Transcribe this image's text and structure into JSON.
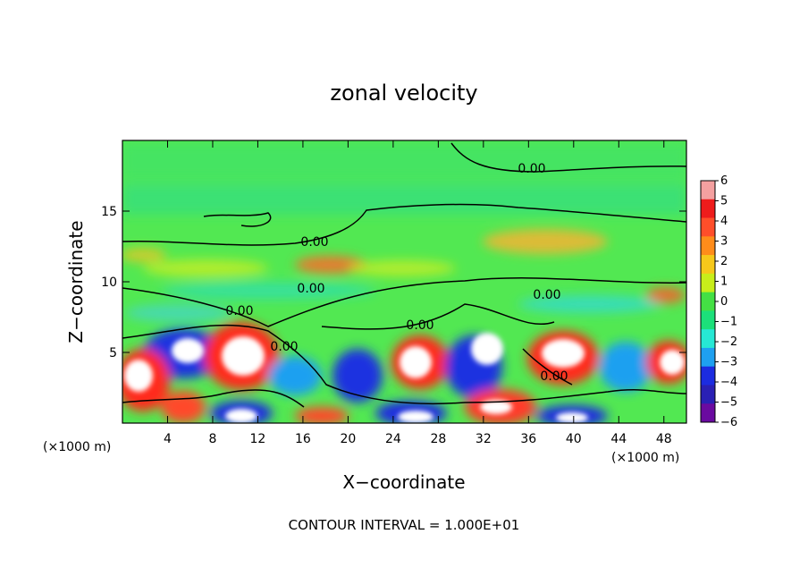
{
  "chart_data": {
    "type": "heatmap",
    "title": "zonal velocity",
    "xlabel": "X−coordinate",
    "ylabel": "Z−coordinate",
    "x_unit_label": "(×1000 m)",
    "x_unit_label_right": "(×1000 m)",
    "xlim": [
      0,
      50
    ],
    "ylim": [
      0,
      20
    ],
    "x_ticks": [
      4,
      8,
      12,
      16,
      20,
      24,
      28,
      32,
      36,
      40,
      44,
      48
    ],
    "y_ticks": [
      5,
      10,
      15
    ],
    "colorbar": {
      "levels": [
        6,
        5,
        4,
        3,
        2,
        1,
        0,
        -1,
        -2,
        -3,
        -4,
        -5,
        -6
      ],
      "labels": [
        "6",
        "5",
        "4",
        "3",
        "2",
        "1",
        "0",
        "−1",
        "−2",
        "−3",
        "−4",
        "−5",
        "−6"
      ],
      "colors": [
        "#f4a0a0",
        "#ee1c1c",
        "#ff4e2a",
        "#ff8c1a",
        "#f6c81a",
        "#c8ee1a",
        "#44e044",
        "#1ce07a",
        "#26e8d4",
        "#1ea0f0",
        "#1c2ce0",
        "#2a20b4",
        "#6a0aa0"
      ]
    },
    "contour_labels": [
      "0.00",
      "0.00",
      "0.00",
      "0.00",
      "0.00",
      "0.00",
      "0.00",
      "0.00"
    ],
    "note": "CONTOUR INTERVAL = 1.000E+01"
  }
}
